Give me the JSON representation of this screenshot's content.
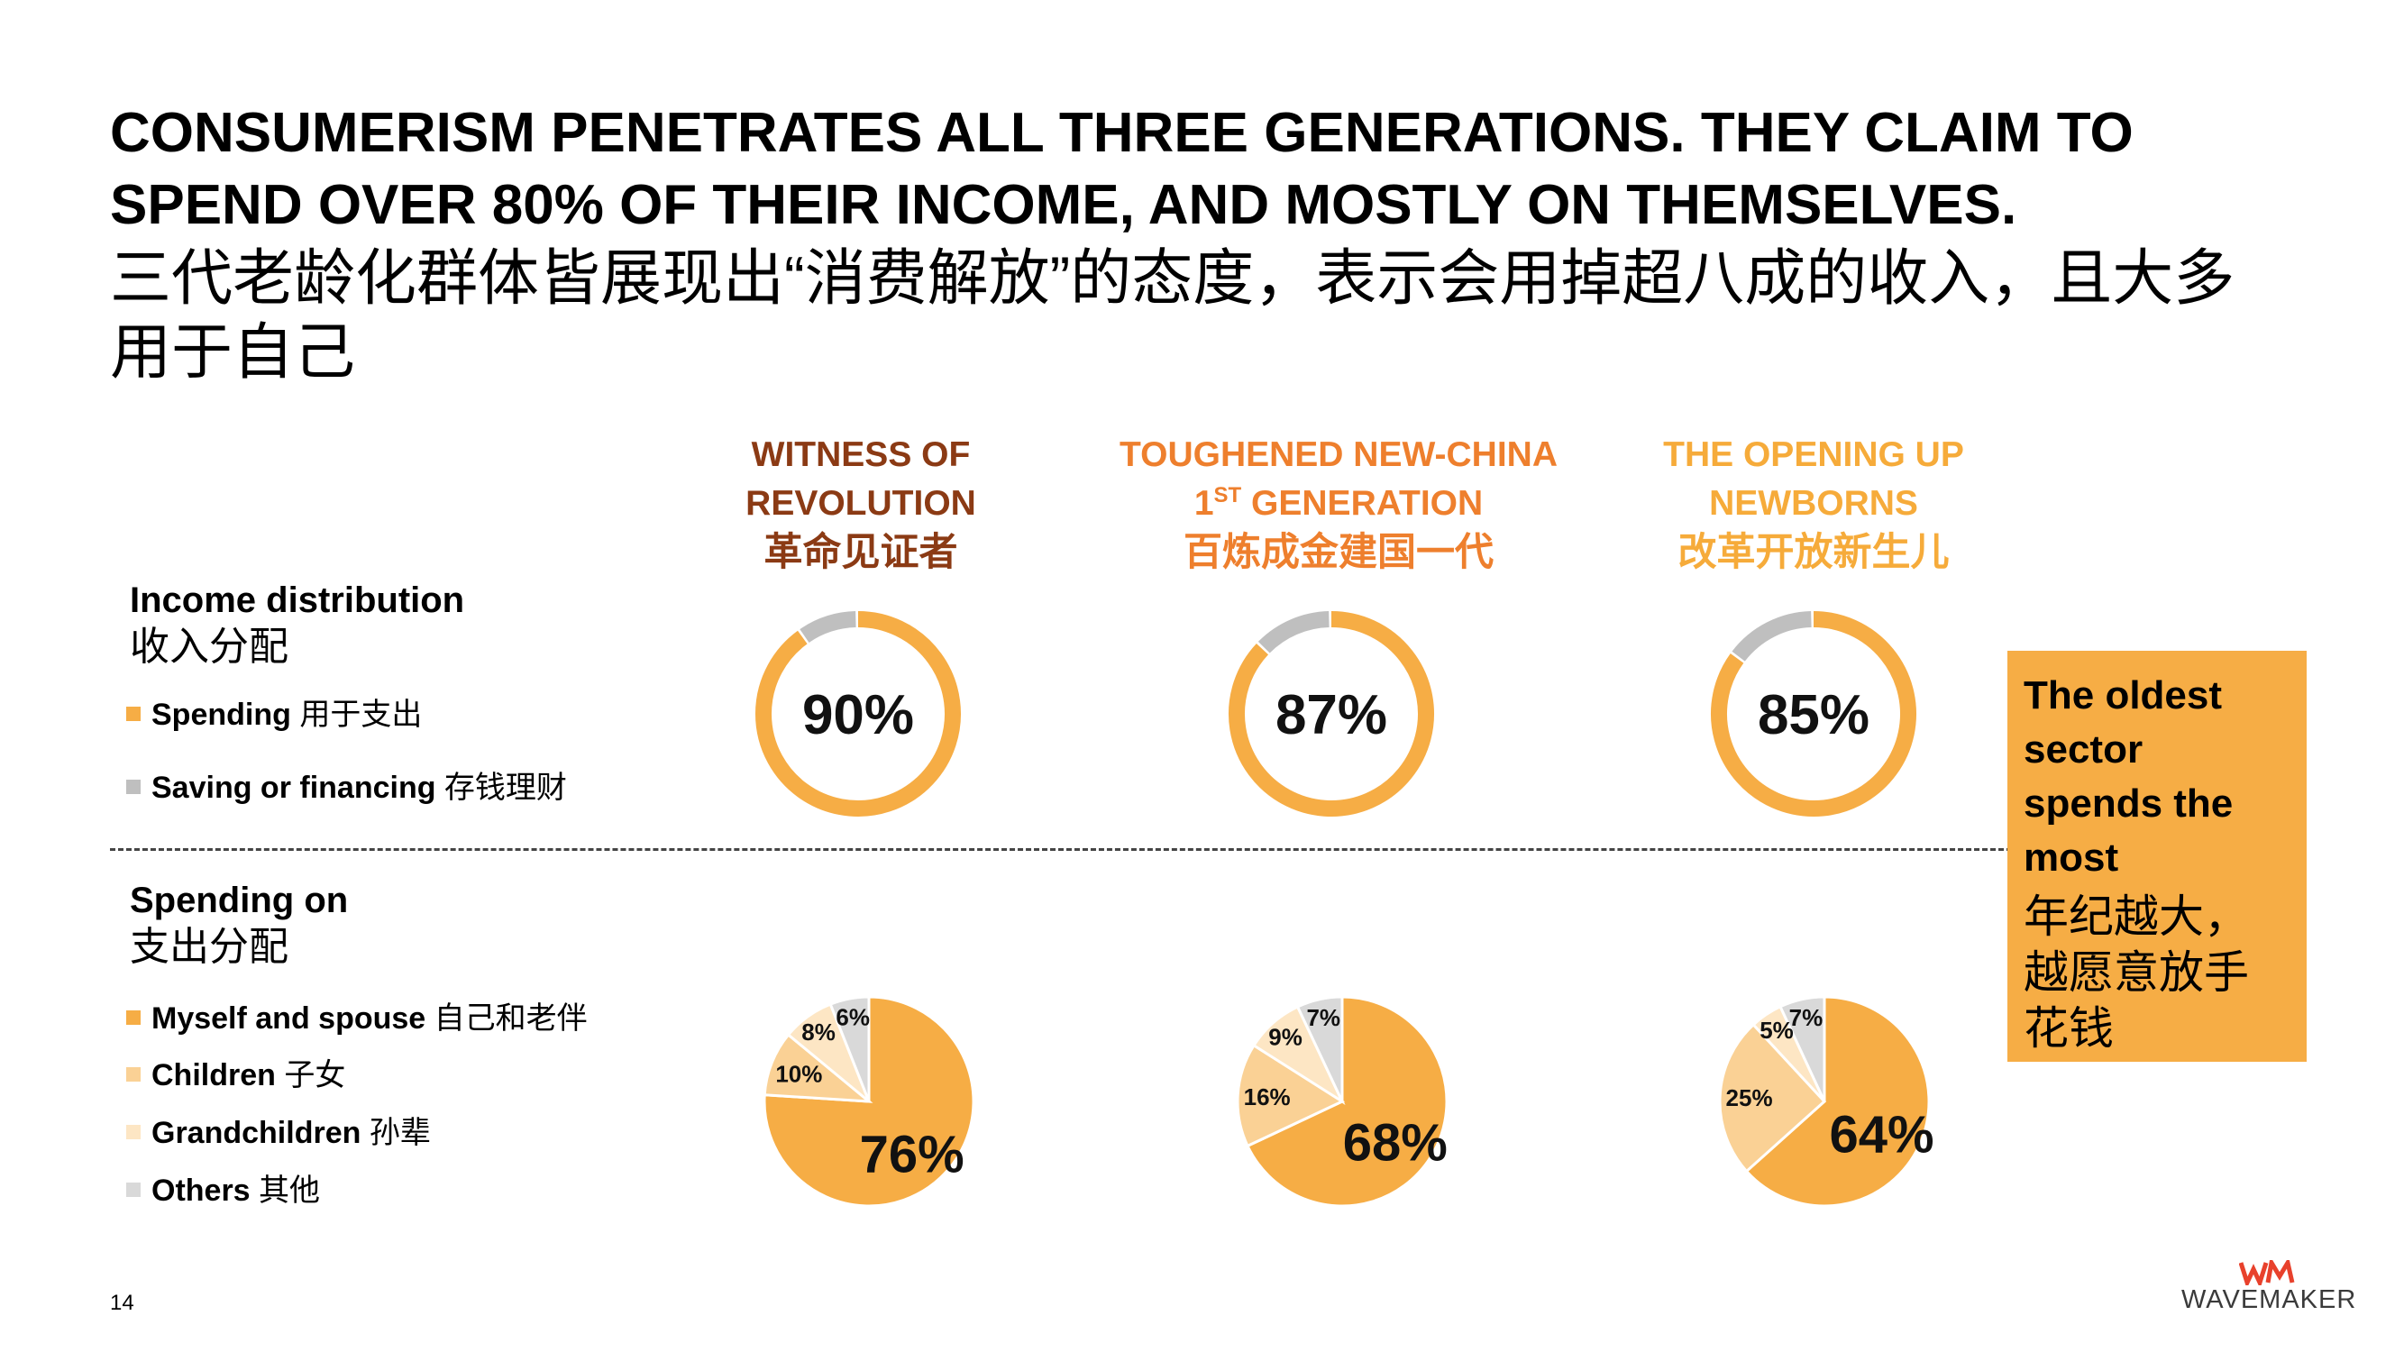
{
  "title_en": "CONSUMERISM PENETRATES ALL THREE GENERATIONS. THEY CLAIM TO SPEND OVER 80% OF THEIR INCOME, AND MOSTLY ON THEMSELVES.",
  "title_cn": "三代老龄化群体皆展现出“消费解放”的态度，表示会用掉超八成的收入，且大多用于自己",
  "generations": [
    {
      "en_line1": "WITNESS OF",
      "en_line2": "REVOLUTION",
      "cn": "革命见证者",
      "color": "#8b3a14"
    },
    {
      "en_line1": "TOUGHENED NEW-CHINA",
      "en_line2_pre": "1",
      "en_line2_sup": "ST",
      "en_line2_post": " GENERATION",
      "cn": "百炼成金建国一代",
      "color": "#ee7f2d"
    },
    {
      "en_line1": "THE OPENING UP",
      "en_line2": "NEWBORNS",
      "cn": "改革开放新生儿",
      "color": "#f6ab3a"
    }
  ],
  "income": {
    "title": "Income distribution",
    "title_cn": "收入分配",
    "legend": [
      {
        "en": "Spending",
        "cn": " 用于支出",
        "color": "#f6ad45"
      },
      {
        "en": "Saving or financing",
        "cn": " 存钱理财",
        "color": "#bfbfbf"
      }
    ]
  },
  "spending": {
    "title": "Spending on",
    "title_cn": "支出分配",
    "legend": [
      {
        "en": "Myself and spouse",
        "cn": " 自己和老伴",
        "color": "#f6ad45"
      },
      {
        "en": "Children",
        "cn": " 子女",
        "color": "#fad195"
      },
      {
        "en": "Grandchildren",
        "cn": " 孙辈",
        "color": "#fde6c4"
      },
      {
        "en": "Others",
        "cn": " 其他",
        "color": "#d9d9d9"
      }
    ]
  },
  "chart_data": [
    {
      "type": "pie",
      "title": "Income distribution",
      "categories": [
        "Spending",
        "Saving or financing"
      ],
      "colors": [
        "#f6ad45",
        "#bfbfbf"
      ],
      "series": [
        {
          "name": "WITNESS OF REVOLUTION",
          "values": [
            90,
            10
          ],
          "label": "90%"
        },
        {
          "name": "TOUGHENED NEW-CHINA 1ST GENERATION",
          "values": [
            87,
            13
          ],
          "label": "87%"
        },
        {
          "name": "THE OPENING UP NEWBORNS",
          "values": [
            85,
            15
          ],
          "label": "85%"
        }
      ]
    },
    {
      "type": "pie",
      "title": "Spending on",
      "categories": [
        "Myself and spouse",
        "Children",
        "Grandchildren",
        "Others"
      ],
      "colors": [
        "#f6ad45",
        "#fad195",
        "#fde6c4",
        "#d9d9d9"
      ],
      "series": [
        {
          "name": "WITNESS OF REVOLUTION",
          "values": [
            76,
            10,
            8,
            6
          ],
          "labels": [
            "76%",
            "10%",
            "8%",
            "6%"
          ]
        },
        {
          "name": "TOUGHENED NEW-CHINA 1ST GENERATION",
          "values": [
            68,
            16,
            9,
            7
          ],
          "labels": [
            "68%",
            "16%",
            "9%",
            "7%"
          ]
        },
        {
          "name": "THE OPENING UP NEWBORNS",
          "values": [
            64,
            25,
            5,
            7
          ],
          "labels": [
            "64%",
            "25%",
            "5%",
            "7%"
          ]
        }
      ]
    }
  ],
  "callout": {
    "en": "The oldest sector spends the most",
    "cn": "年纪越大，越愿意放手花钱"
  },
  "page_number": "14",
  "logo": {
    "mark": "WM",
    "word": "WAVEMAKER",
    "mark_color": "#e8412c"
  }
}
